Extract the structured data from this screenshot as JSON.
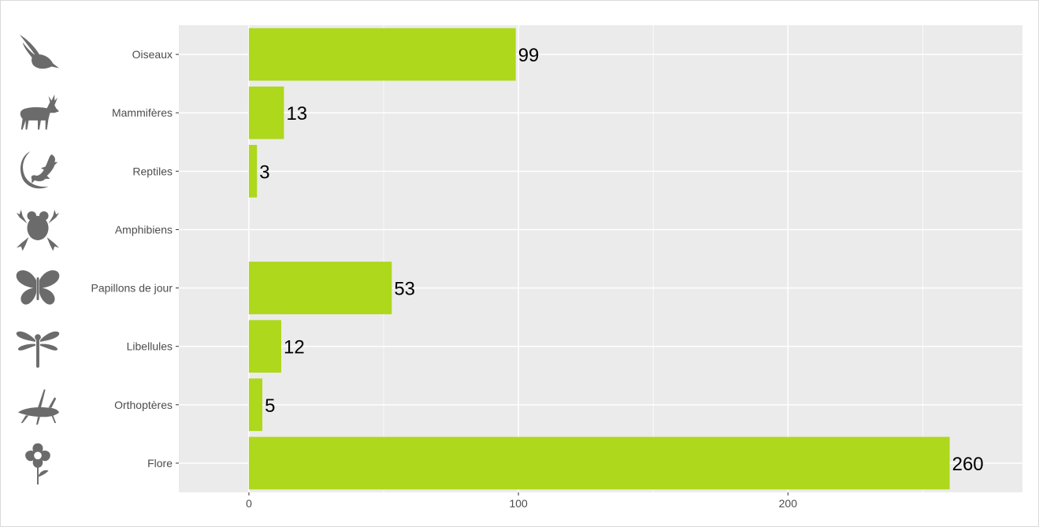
{
  "chart_data": {
    "type": "bar",
    "orientation": "horizontal",
    "title": "",
    "xlabel": "",
    "ylabel": "",
    "categories": [
      "Oiseaux",
      "Mammifères",
      "Reptiles",
      "Amphibiens",
      "Papillons de jour",
      "Libellules",
      "Orthoptères",
      "Flore"
    ],
    "icons": [
      "bird-icon",
      "deer-icon",
      "lizard-icon",
      "frog-icon",
      "butterfly-icon",
      "dragonfly-icon",
      "cricket-icon",
      "flower-icon"
    ],
    "values": [
      99,
      13,
      3,
      0,
      53,
      12,
      5,
      260
    ],
    "value_labels": [
      "99",
      "13",
      "3",
      "",
      "53",
      "12",
      "5",
      "260"
    ],
    "x_ticks": [
      0,
      100,
      200
    ],
    "x_tick_labels": [
      "0",
      "100",
      "200"
    ],
    "xlim": [
      -26,
      287
    ],
    "grid": true,
    "legend": "none",
    "colors": {
      "bar": "#add81c",
      "panel": "#ebebeb",
      "grid": "#ffffff",
      "icon": "#6b6b6b",
      "tick_text": "#4d4d4d",
      "value_text": "#000000"
    }
  }
}
